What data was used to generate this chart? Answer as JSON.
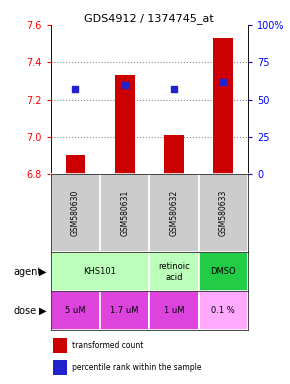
{
  "title": "GDS4912 / 1374745_at",
  "samples": [
    "GSM580630",
    "GSM580631",
    "GSM580632",
    "GSM580633"
  ],
  "bar_values": [
    6.9,
    7.33,
    7.01,
    7.53
  ],
  "percentile_values": [
    57,
    60,
    57,
    62
  ],
  "ylim_left": [
    6.8,
    7.6
  ],
  "ylim_right": [
    0,
    100
  ],
  "yticks_left": [
    6.8,
    7.0,
    7.2,
    7.4,
    7.6
  ],
  "yticks_right": [
    0,
    25,
    50,
    75,
    100
  ],
  "yticklabels_right": [
    "0",
    "25",
    "50",
    "75",
    "100%"
  ],
  "bar_color": "#cc0000",
  "dot_color": "#2222cc",
  "agent_groups": [
    [
      0,
      1,
      "KHS101",
      "#bbffbb"
    ],
    [
      2,
      2,
      "retinoic\nacid",
      "#bbffbb"
    ],
    [
      3,
      3,
      "DMSO",
      "#22cc44"
    ]
  ],
  "dose_labels": [
    "5 uM",
    "1.7 uM",
    "1 uM",
    "0.1 %"
  ],
  "dose_colors": [
    "#dd44dd",
    "#dd44dd",
    "#dd44dd",
    "#ffaaff"
  ],
  "sample_bg_color": "#cccccc",
  "legend_bar_label": "transformed count",
  "legend_dot_label": "percentile rank within the sample"
}
